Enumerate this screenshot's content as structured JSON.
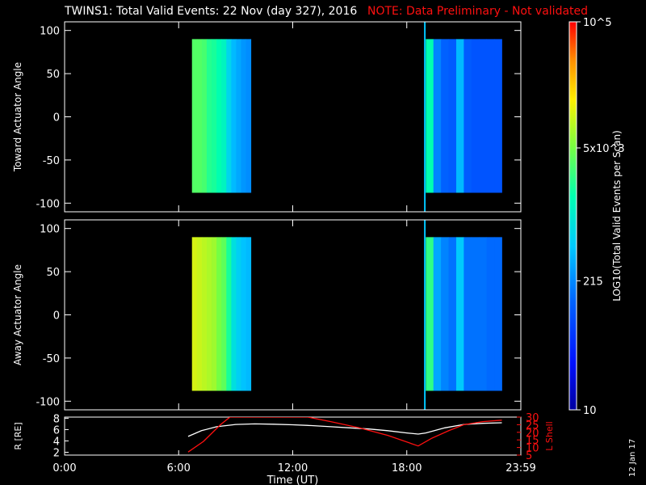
{
  "header": {
    "title": "TWINS1: Total Valid Events: 22 Nov (day 327), 2016",
    "note": "NOTE: Data Preliminary - Not validated"
  },
  "date_stamp": "12 Jan 17",
  "colors": {
    "background": "#000000",
    "axes": "#ffffff",
    "note": "#ff1010",
    "r_line": "#ffffff",
    "lshell_line": "#ff1010",
    "marker": "#00c8ff"
  },
  "chart_data": [
    {
      "type": "heatmap",
      "ylabel": "Toward Actuator Angle",
      "ylim": [
        -110,
        110
      ],
      "yticks": [
        100,
        50,
        0,
        -50,
        -100
      ],
      "xlim": [
        0,
        24
      ],
      "data_blocks": [
        {
          "t_start": 6.7,
          "t_end": 9.8,
          "angle_min": -88,
          "angle_max": 90,
          "log_counts": [
            3.55,
            3.55,
            3.5,
            3.35,
            3.3,
            3.2,
            3.1,
            2.8,
            2.6,
            2.5,
            2.4,
            2.35
          ]
        },
        {
          "t_start": 19.0,
          "t_end": 23.0,
          "angle_min": -88,
          "angle_max": 90,
          "log_counts": [
            3.2,
            2.3,
            2.1,
            2.05,
            2.6,
            2.05,
            2.0,
            2.0,
            2.0,
            2.0
          ]
        }
      ],
      "marker_time": 18.95
    },
    {
      "type": "heatmap",
      "ylabel": "Away Actuator Angle",
      "ylim": [
        -110,
        110
      ],
      "yticks": [
        100,
        50,
        0,
        -50,
        -100
      ],
      "xlim": [
        0,
        24
      ],
      "data_blocks": [
        {
          "t_start": 6.7,
          "t_end": 9.8,
          "angle_min": -88,
          "angle_max": 90,
          "log_counts": [
            4.05,
            4.0,
            3.95,
            3.9,
            3.85,
            3.7,
            3.6,
            3.3,
            2.9,
            2.75,
            2.65,
            2.6
          ]
        },
        {
          "t_start": 19.0,
          "t_end": 23.0,
          "angle_min": -88,
          "angle_max": 90,
          "log_counts": [
            3.4,
            2.5,
            2.3,
            2.2,
            2.7,
            2.2,
            2.2,
            2.2,
            2.15,
            2.15
          ]
        }
      ],
      "marker_time": 18.95
    },
    {
      "type": "line",
      "ylabel": "R [RE]",
      "ylabel_right": "L Shell",
      "xlabel": "Time (UT)",
      "xticks": [
        "0:00",
        "6:00",
        "12:00",
        "18:00",
        "23:59"
      ],
      "xtick_values": [
        0,
        6,
        12,
        18,
        24
      ],
      "xlim": [
        0,
        24
      ],
      "ylim": [
        1.5,
        8.2
      ],
      "yticks": [
        2,
        4,
        6,
        8
      ],
      "ylim_right": [
        5,
        30
      ],
      "yticks_right": [
        5,
        10,
        15,
        20,
        25,
        30
      ],
      "series": [
        {
          "x": [
            6.5,
            7.2,
            8.0,
            9.0,
            10.0,
            11.0,
            12.0,
            13.0,
            14.0,
            15.0,
            16.0,
            17.0,
            18.0,
            18.6,
            19.0,
            20.0,
            21.0,
            22.0,
            23.0
          ],
          "y": [
            4.8,
            5.8,
            6.5,
            6.9,
            7.0,
            6.95,
            6.85,
            6.7,
            6.5,
            6.3,
            6.1,
            5.8,
            5.4,
            5.2,
            5.4,
            6.3,
            6.9,
            7.1,
            7.2
          ]
        },
        {
          "axis": "right",
          "x": [
            6.5,
            7.3,
            8.2,
            8.7,
            12.8,
            14.0,
            15.5,
            17.0,
            18.6,
            19.3,
            20.2,
            21.0,
            22.0,
            23.0
          ],
          "y": [
            7,
            14,
            25,
            30,
            30,
            27,
            23,
            18,
            11,
            16,
            21,
            25,
            27,
            28
          ]
        }
      ]
    }
  ],
  "colorbar": {
    "label": "LOG10(Total Valid Events per Scan)",
    "log_min": 1.0,
    "log_max": 5.0,
    "ticks": [
      {
        "label": "10",
        "log_value": 1.0
      },
      {
        "label": "215",
        "log_value": 2.33
      },
      {
        "label": "5x10^3",
        "log_value": 3.7
      },
      {
        "label": "10^5",
        "log_value": 5.0
      }
    ]
  }
}
